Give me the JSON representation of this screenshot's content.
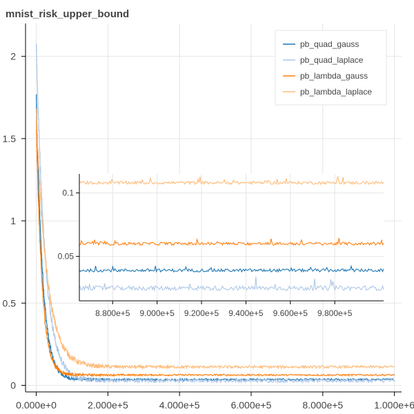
{
  "chart_data": {
    "type": "line",
    "title": "mnist_risk_upper_bound",
    "xlabel": "",
    "ylabel": "",
    "xlim": [
      -30000,
      1020000
    ],
    "ylim": [
      -0.04,
      2.2
    ],
    "x_ticks": [
      0,
      200000,
      400000,
      600000,
      800000,
      1000000
    ],
    "x_tick_labels": [
      "0.000e+0",
      "2.000e+5",
      "4.000e+5",
      "6.000e+5",
      "8.000e+5",
      "1.000e+6"
    ],
    "y_ticks": [
      0,
      0.5,
      1,
      1.5,
      2
    ],
    "y_tick_labels": [
      "0",
      "0.5",
      "1",
      "1.5",
      "2"
    ],
    "grid": true,
    "legend_position": "top-right",
    "series": [
      {
        "name": "pb_quad_gauss",
        "color": "#1f77b4",
        "start": 1.75,
        "final": 0.035,
        "decay": 18000,
        "noise": 0.006
      },
      {
        "name": "pb_quad_laplace",
        "color": "#aec7e8",
        "start": 2.08,
        "final": 0.028,
        "decay": 25000,
        "noise": 0.01
      },
      {
        "name": "pb_lambda_gauss",
        "color": "#ff7f0e",
        "start": 1.6,
        "final": 0.063,
        "decay": 16000,
        "noise": 0.005
      },
      {
        "name": "pb_lambda_laplace",
        "color": "#ffbb78",
        "start": 1.65,
        "final": 0.112,
        "decay": 30000,
        "noise": 0.008
      }
    ],
    "inset": {
      "xlim": [
        865000,
        1002000
      ],
      "ylim": [
        0.015,
        0.115
      ],
      "x_ticks": [
        880000,
        900000,
        920000,
        940000,
        960000,
        980000
      ],
      "x_tick_labels": [
        "8.800e+5",
        "9.000e+5",
        "9.200e+5",
        "9.400e+5",
        "9.600e+5",
        "9.800e+5"
      ],
      "y_ticks": [
        0.05,
        0.1
      ],
      "y_tick_labels": [
        "0.05",
        "0.1"
      ],
      "levels": [
        0.039,
        0.025,
        0.06,
        0.108
      ]
    }
  }
}
